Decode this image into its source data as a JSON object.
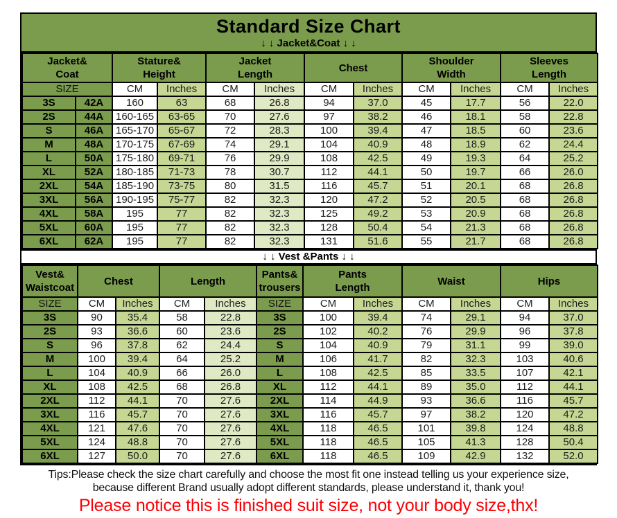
{
  "page": {
    "title": "Standard Size Chart",
    "jacket_band": "↓ ↓  Jacket&Coat ↓ ↓",
    "vest_band": "↓ ↓  Vest &Pants ↓ ↓"
  },
  "units": {
    "size": "SIZE",
    "cm": "CM",
    "inches": "Inches"
  },
  "colors": {
    "olive": "#7b9b4d",
    "pale_green": "#c6d794",
    "light_green": "#dfe9c3",
    "notice_red": "#fb0006"
  },
  "jacket_table": {
    "groups": [
      {
        "label": "Jacket&\nCoat"
      },
      {
        "label": "Stature&\nHeight"
      },
      {
        "label": "Jacket\nLength"
      },
      {
        "label": "Chest"
      },
      {
        "label": "Shoulder\nWidth"
      },
      {
        "label": "Sleeves\nLength"
      }
    ],
    "rows": [
      [
        "3S",
        "42A",
        "160",
        "63",
        "68",
        "26.8",
        "94",
        "37.0",
        "45",
        "17.7",
        "56",
        "22.0"
      ],
      [
        "2S",
        "44A",
        "160-165",
        "63-65",
        "70",
        "27.6",
        "97",
        "38.2",
        "46",
        "18.1",
        "58",
        "22.8"
      ],
      [
        "S",
        "46A",
        "165-170",
        "65-67",
        "72",
        "28.3",
        "100",
        "39.4",
        "47",
        "18.5",
        "60",
        "23.6"
      ],
      [
        "M",
        "48A",
        "170-175",
        "67-69",
        "74",
        "29.1",
        "104",
        "40.9",
        "48",
        "18.9",
        "62",
        "24.4"
      ],
      [
        "L",
        "50A",
        "175-180",
        "69-71",
        "76",
        "29.9",
        "108",
        "42.5",
        "49",
        "19.3",
        "64",
        "25.2"
      ],
      [
        "XL",
        "52A",
        "180-185",
        "71-73",
        "78",
        "30.7",
        "112",
        "44.1",
        "50",
        "19.7",
        "66",
        "26.0"
      ],
      [
        "2XL",
        "54A",
        "185-190",
        "73-75",
        "80",
        "31.5",
        "116",
        "45.7",
        "51",
        "20.1",
        "68",
        "26.8"
      ],
      [
        "3XL",
        "56A",
        "190-195",
        "75-77",
        "82",
        "32.3",
        "120",
        "47.2",
        "52",
        "20.5",
        "68",
        "26.8"
      ],
      [
        "4XL",
        "58A",
        "195",
        "77",
        "82",
        "32.3",
        "125",
        "49.2",
        "53",
        "20.9",
        "68",
        "26.8"
      ],
      [
        "5XL",
        "60A",
        "195",
        "77",
        "82",
        "32.3",
        "128",
        "50.4",
        "54",
        "21.3",
        "68",
        "26.8"
      ],
      [
        "6XL",
        "62A",
        "195",
        "77",
        "82",
        "32.3",
        "131",
        "51.6",
        "55",
        "21.7",
        "68",
        "26.8"
      ]
    ]
  },
  "vest_pants_table": {
    "groups": [
      {
        "label": "Vest&\nWaistcoat"
      },
      {
        "label": "Chest"
      },
      {
        "label": "Length"
      },
      {
        "label": "Pants&\ntrousers"
      },
      {
        "label": "Pants\nLength"
      },
      {
        "label": "Waist"
      },
      {
        "label": "Hips"
      }
    ],
    "rows": [
      [
        "3S",
        "90",
        "35.4",
        "58",
        "22.8",
        "3S",
        "100",
        "39.4",
        "74",
        "29.1",
        "94",
        "37.0"
      ],
      [
        "2S",
        "93",
        "36.6",
        "60",
        "23.6",
        "2S",
        "102",
        "40.2",
        "76",
        "29.9",
        "96",
        "37.8"
      ],
      [
        "S",
        "96",
        "37.8",
        "62",
        "24.4",
        "S",
        "104",
        "40.9",
        "79",
        "31.1",
        "99",
        "39.0"
      ],
      [
        "M",
        "100",
        "39.4",
        "64",
        "25.2",
        "M",
        "106",
        "41.7",
        "82",
        "32.3",
        "103",
        "40.6"
      ],
      [
        "L",
        "104",
        "40.9",
        "66",
        "26.0",
        "L",
        "108",
        "42.5",
        "85",
        "33.5",
        "107",
        "42.1"
      ],
      [
        "XL",
        "108",
        "42.5",
        "68",
        "26.8",
        "XL",
        "112",
        "44.1",
        "89",
        "35.0",
        "112",
        "44.1"
      ],
      [
        "2XL",
        "112",
        "44.1",
        "70",
        "27.6",
        "2XL",
        "114",
        "44.9",
        "93",
        "36.6",
        "116",
        "45.7"
      ],
      [
        "3XL",
        "116",
        "45.7",
        "70",
        "27.6",
        "3XL",
        "116",
        "45.7",
        "97",
        "38.2",
        "120",
        "47.2"
      ],
      [
        "4XL",
        "121",
        "47.6",
        "70",
        "27.6",
        "4XL",
        "118",
        "46.5",
        "101",
        "39.8",
        "124",
        "48.8"
      ],
      [
        "5XL",
        "124",
        "48.8",
        "70",
        "27.6",
        "5XL",
        "118",
        "46.5",
        "105",
        "41.3",
        "128",
        "50.4"
      ],
      [
        "6XL",
        "127",
        "50.0",
        "70",
        "27.6",
        "6XL",
        "118",
        "46.5",
        "109",
        "42.9",
        "132",
        "52.0"
      ]
    ]
  },
  "footer": {
    "tips_line1": "Tips:Please check the size chart carefully and choose the most fit one instead telling us your experience size,",
    "tips_line2": "because different Brand usually adopt different standards, please understand it, thank you!",
    "notice": "Please notice this is finished suit size, not your body size,thx!"
  }
}
